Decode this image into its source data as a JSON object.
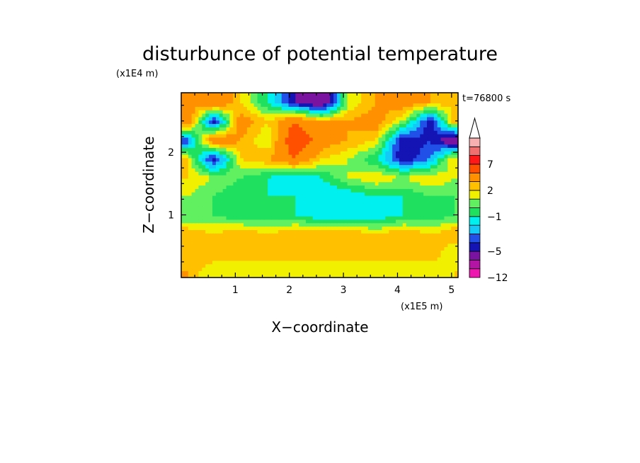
{
  "chart_data": {
    "type": "heatmap",
    "title": "disturbunce of potential temperature",
    "time_label": "t=76800 s",
    "xlabel": "X−coordinate",
    "ylabel": "Z−coordinate",
    "x_unit": "(x1E5 m)",
    "y_unit": "(x1E4 m)",
    "x_ticks": [
      1,
      2,
      3,
      4,
      5
    ],
    "x_tick_labels": [
      "1",
      "2",
      "3",
      "4",
      "5"
    ],
    "y_ticks": [
      1,
      2
    ],
    "y_tick_labels": [
      "1",
      "2"
    ],
    "xlim": [
      0,
      5.12
    ],
    "ylim": [
      0,
      2.95
    ],
    "colorbar": {
      "levels": [
        -12,
        -9,
        -7,
        -5,
        -4,
        -3,
        -2,
        -1,
        0,
        1,
        2,
        3,
        5,
        7,
        9,
        11
      ],
      "labels": [
        {
          "value": 7,
          "text": "7"
        },
        {
          "value": 2,
          "text": "2"
        },
        {
          "value": -1,
          "text": "−1"
        },
        {
          "value": -5,
          "text": "−5"
        },
        {
          "value": -12,
          "text": "−12"
        }
      ],
      "colors": [
        "#ee18b0",
        "#b414a4",
        "#7a14a0",
        "#1414b4",
        "#2050e8",
        "#14c8f8",
        "#00f0f0",
        "#20e060",
        "#60f060",
        "#f0f000",
        "#ffc000",
        "#ff9000",
        "#ff5000",
        "#ff1818",
        "#f07070",
        "#f8b0b0"
      ],
      "extend": "max"
    },
    "z_grid": {
      "x": [
        0.1,
        0.6,
        1.1,
        1.6,
        2.1,
        2.6,
        3.1,
        3.6,
        4.1,
        4.6,
        5.05
      ],
      "y": [
        0.1,
        0.4,
        0.7,
        1.0,
        1.3,
        1.6,
        1.9,
        2.2,
        2.5,
        2.8
      ],
      "z": [
        [
          3,
          1,
          2,
          1,
          2,
          1,
          2,
          1,
          2,
          1,
          2
        ],
        [
          2,
          3,
          2,
          3,
          2,
          3,
          2,
          3,
          2,
          3,
          1
        ],
        [
          3,
          2,
          3,
          2,
          3,
          3,
          3,
          2,
          3,
          2,
          3
        ],
        [
          0,
          0,
          -1,
          -1,
          -1,
          -2,
          -2,
          -2,
          -1,
          -1,
          0
        ],
        [
          1,
          0,
          -1,
          -1,
          -1,
          -2,
          -2,
          -1,
          -1,
          0,
          0
        ],
        [
          2,
          1,
          0,
          -1,
          -2,
          -1,
          1,
          2,
          1,
          2,
          1
        ],
        [
          2,
          -5,
          2,
          3,
          5,
          2,
          1,
          -1,
          -5,
          -3,
          2
        ],
        [
          -4,
          5,
          3,
          1,
          7,
          4,
          3,
          2,
          -5,
          -4,
          -7
        ],
        [
          5,
          -5,
          4,
          2,
          5,
          3,
          3,
          4,
          1,
          -5,
          3
        ],
        [
          3,
          5,
          2,
          -1,
          -5,
          -7,
          1,
          3,
          4,
          3,
          2
        ]
      ]
    }
  }
}
